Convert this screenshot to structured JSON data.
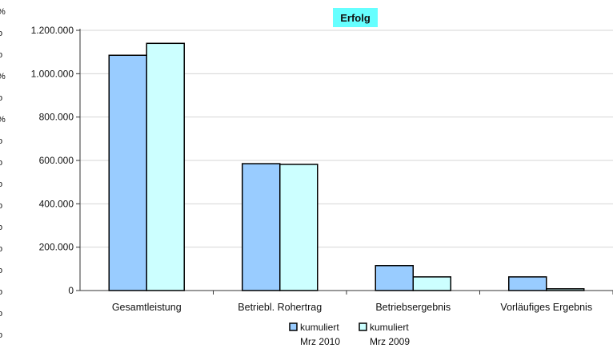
{
  "chart_data": {
    "type": "bar",
    "title": "Erfolg",
    "xlabel": "",
    "ylabel": "",
    "categories": [
      "Gesamtleistung",
      "Betriebl. Rohertrag",
      "Betriebsergebnis",
      "Vorläufiges Ergebnis"
    ],
    "series": [
      {
        "name": "kumuliert Mrz 2010",
        "name_lines": [
          "kumuliert",
          "Mrz 2010"
        ],
        "color": "#99ccff",
        "values": [
          1085000,
          585000,
          115000,
          63000
        ]
      },
      {
        "name": "kumuliert Mrz 2009",
        "name_lines": [
          "kumuliert",
          "Mrz 2009"
        ],
        "color": "#ccffff",
        "values": [
          1140000,
          582000,
          63000,
          8000
        ]
      }
    ],
    "ylim": [
      0,
      1200000
    ],
    "yticks": [
      0,
      200000,
      400000,
      600000,
      800000,
      1000000,
      1200000
    ],
    "ytick_labels": [
      "0",
      "200.000",
      "400.000",
      "600.000",
      "800.000",
      "1.000.000",
      "1.200.000"
    ],
    "grid": true,
    "legend": "bottom",
    "title_background": "#66ffff",
    "edge_glyphs": [
      "%",
      "o",
      "o",
      "%",
      "o",
      "%",
      "o",
      "o",
      "o",
      "o",
      "o",
      "o",
      "o",
      "o",
      "o",
      "o"
    ]
  }
}
